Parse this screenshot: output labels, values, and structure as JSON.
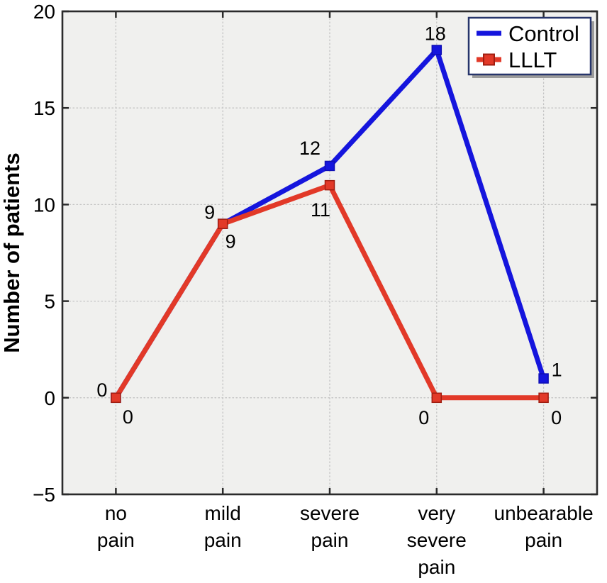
{
  "chart_data": {
    "type": "line",
    "title": "",
    "xlabel": "",
    "ylabel": "Number of patients",
    "ylim": [
      -5,
      20
    ],
    "yticks": [
      -5,
      0,
      5,
      10,
      15,
      20
    ],
    "grid": "dotted",
    "legend_position": "top-right",
    "categories": [
      {
        "lines": [
          "no",
          "pain"
        ]
      },
      {
        "lines": [
          "mild",
          "pain"
        ]
      },
      {
        "lines": [
          "severe",
          "pain"
        ]
      },
      {
        "lines": [
          "very",
          "severe",
          "pain"
        ]
      },
      {
        "lines": [
          "unbearable",
          "pain"
        ]
      }
    ],
    "series": [
      {
        "name": "Control",
        "color": "#1515dd",
        "marker": "square",
        "marker_edge": "#0e0eb4",
        "legend_marker": false,
        "values": [
          0,
          9,
          12,
          18,
          1
        ],
        "point_labels": [
          {
            "text": "0",
            "dx": -12,
            "dy": -2,
            "anchor": "end"
          },
          {
            "text": "9",
            "dx": -11,
            "dy": -7,
            "anchor": "end"
          },
          {
            "text": "12",
            "dx": -13,
            "dy": -16,
            "anchor": "end"
          },
          {
            "text": "18",
            "dx": -2,
            "dy": -14,
            "anchor": "middle"
          },
          {
            "text": "1",
            "dx": 11,
            "dy": -3,
            "anchor": "start"
          }
        ]
      },
      {
        "name": "LLLT",
        "color": "#e23928",
        "marker": "square",
        "marker_edge": "#a01d10",
        "legend_marker": true,
        "values": [
          0,
          9,
          11,
          0,
          0
        ],
        "point_labels": [
          {
            "text": "0",
            "dx": 17,
            "dy": 36,
            "anchor": "middle"
          },
          {
            "text": "9",
            "dx": 11,
            "dy": 34,
            "anchor": "middle"
          },
          {
            "text": "11",
            "dx": -13,
            "dy": 44,
            "anchor": "middle"
          },
          {
            "text": "0",
            "dx": -18,
            "dy": 37,
            "anchor": "middle"
          },
          {
            "text": "0",
            "dx": 18,
            "dy": 37,
            "anchor": "middle"
          }
        ]
      }
    ],
    "colors": {
      "plot_bg": "#f0f0ee",
      "grid": "#c3c3c3",
      "axis": "#2b2b2b",
      "text": "#000000",
      "legend_border": "#26356b",
      "legend_bg": "#ffffff",
      "legend_shadow": "#9b9b9b"
    }
  }
}
